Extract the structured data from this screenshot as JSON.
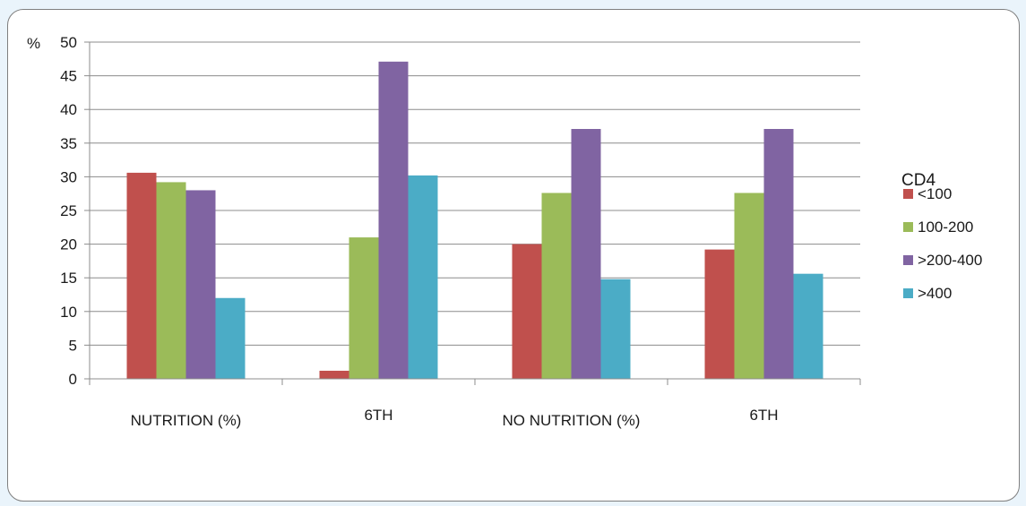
{
  "chart_data": {
    "type": "bar",
    "title": "",
    "ylabel": "%",
    "xlabel": "",
    "ylim": [
      0,
      50
    ],
    "yticks": [
      0,
      5,
      10,
      15,
      20,
      25,
      30,
      35,
      40,
      45,
      50
    ],
    "grid": true,
    "legend_position": "right",
    "legend_title": "CD4",
    "categories": [
      "NUTRITION (%)",
      "6TH",
      "NO NUTRITION (%)",
      "6TH"
    ],
    "series": [
      {
        "name": "<100",
        "color": "#c0504d",
        "values": [
          30.6,
          1.2,
          20.0,
          19.2
        ]
      },
      {
        "name": "100-200",
        "color": "#9bbb59",
        "values": [
          29.2,
          21.0,
          27.6,
          27.6
        ]
      },
      {
        "name": ">200-400",
        "color": "#8064a2",
        "values": [
          28.0,
          47.1,
          37.1,
          37.1
        ]
      },
      {
        "name": ">400",
        "color": "#4bacc6",
        "values": [
          12.0,
          30.2,
          14.8,
          15.6
        ]
      }
    ]
  }
}
